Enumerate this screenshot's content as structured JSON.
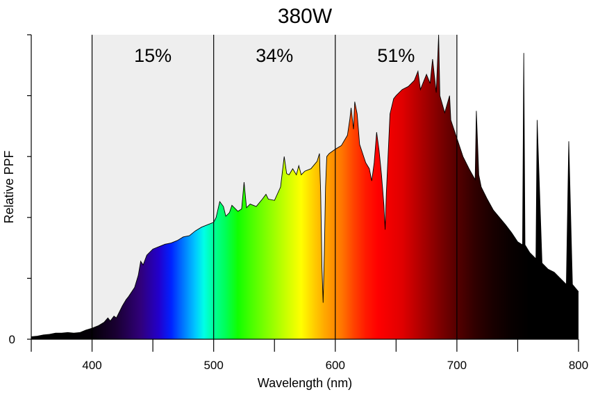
{
  "chart_data": {
    "type": "area",
    "title": "380W",
    "xlabel": "Wavelength (nm)",
    "ylabel": "Relative PPF",
    "xlim": [
      350,
      800
    ],
    "ylim": [
      0,
      5
    ],
    "x_tick_labels": [
      "400",
      "500",
      "600",
      "700",
      "800"
    ],
    "x_ticks_all": [
      350,
      400,
      450,
      500,
      550,
      600,
      650,
      700,
      750,
      800
    ],
    "y_tick_labels": [
      "0"
    ],
    "y_ticks_all": [
      0,
      1,
      2,
      3,
      4,
      5
    ],
    "grid": false,
    "bands": [
      {
        "name": "blue",
        "range": [
          400,
          500
        ],
        "label": "15%"
      },
      {
        "name": "green",
        "range": [
          500,
          600
        ],
        "label": "34%"
      },
      {
        "name": "red",
        "range": [
          600,
          700
        ],
        "label": "51%"
      }
    ],
    "band_fill_color": "#eeeeee",
    "series": [
      {
        "name": "Relative PPF (380W)",
        "x": [
          350,
          355,
          360,
          365,
          370,
          375,
          380,
          385,
          390,
          395,
          400,
          405,
          410,
          413,
          415,
          418,
          420,
          425,
          428,
          430,
          435,
          438,
          440,
          442,
          445,
          450,
          455,
          460,
          465,
          470,
          475,
          480,
          485,
          490,
          495,
          500,
          502,
          505,
          508,
          510,
          513,
          515,
          520,
          523,
          525,
          527,
          530,
          535,
          540,
          543,
          545,
          550,
          555,
          558,
          560,
          562,
          565,
          568,
          570,
          572,
          575,
          580,
          585,
          587,
          588,
          589,
          590,
          591,
          592,
          593,
          595,
          600,
          605,
          610,
          612,
          613,
          615,
          616,
          618,
          620,
          625,
          628,
          630,
          632,
          634,
          636,
          638,
          640,
          641,
          642,
          645,
          648,
          650,
          655,
          660,
          665,
          668,
          670,
          675,
          678,
          680,
          683,
          684,
          685,
          686,
          690,
          694,
          695,
          700,
          705,
          710,
          715,
          716,
          718,
          720,
          725,
          730,
          735,
          740,
          745,
          750,
          754,
          755,
          756,
          760,
          765,
          766,
          770,
          775,
          780,
          785,
          790,
          792,
          795,
          800
        ],
        "values": [
          0.04,
          0.05,
          0.07,
          0.08,
          0.1,
          0.1,
          0.11,
          0.1,
          0.11,
          0.15,
          0.18,
          0.22,
          0.28,
          0.35,
          0.3,
          0.38,
          0.35,
          0.55,
          0.65,
          0.7,
          0.85,
          1.05,
          1.28,
          1.22,
          1.38,
          1.48,
          1.52,
          1.56,
          1.58,
          1.62,
          1.68,
          1.7,
          1.78,
          1.84,
          1.88,
          1.92,
          2.0,
          2.26,
          2.18,
          2.02,
          2.08,
          2.2,
          2.1,
          2.14,
          2.58,
          2.16,
          2.22,
          2.18,
          2.3,
          2.38,
          2.3,
          2.28,
          2.5,
          3.0,
          2.72,
          2.7,
          2.8,
          2.7,
          2.85,
          2.7,
          2.76,
          2.8,
          2.92,
          3.05,
          2.4,
          1.2,
          0.6,
          1.4,
          2.5,
          3.0,
          3.05,
          3.12,
          3.18,
          3.35,
          3.62,
          3.8,
          3.45,
          3.9,
          3.7,
          3.2,
          2.9,
          2.8,
          2.6,
          2.9,
          3.4,
          3.1,
          2.7,
          2.2,
          1.8,
          2.4,
          3.7,
          3.95,
          4.0,
          4.1,
          4.15,
          4.25,
          4.4,
          4.1,
          4.35,
          4.2,
          4.6,
          4.05,
          4.5,
          5.0,
          4.0,
          3.72,
          4.0,
          3.6,
          3.3,
          3.0,
          2.8,
          2.62,
          3.75,
          2.7,
          2.5,
          2.3,
          2.12,
          2.0,
          1.88,
          1.75,
          1.6,
          1.55,
          4.7,
          1.55,
          1.42,
          1.32,
          3.6,
          1.25,
          1.15,
          1.1,
          1.0,
          0.9,
          3.25,
          0.9,
          0.78
        ]
      }
    ]
  }
}
